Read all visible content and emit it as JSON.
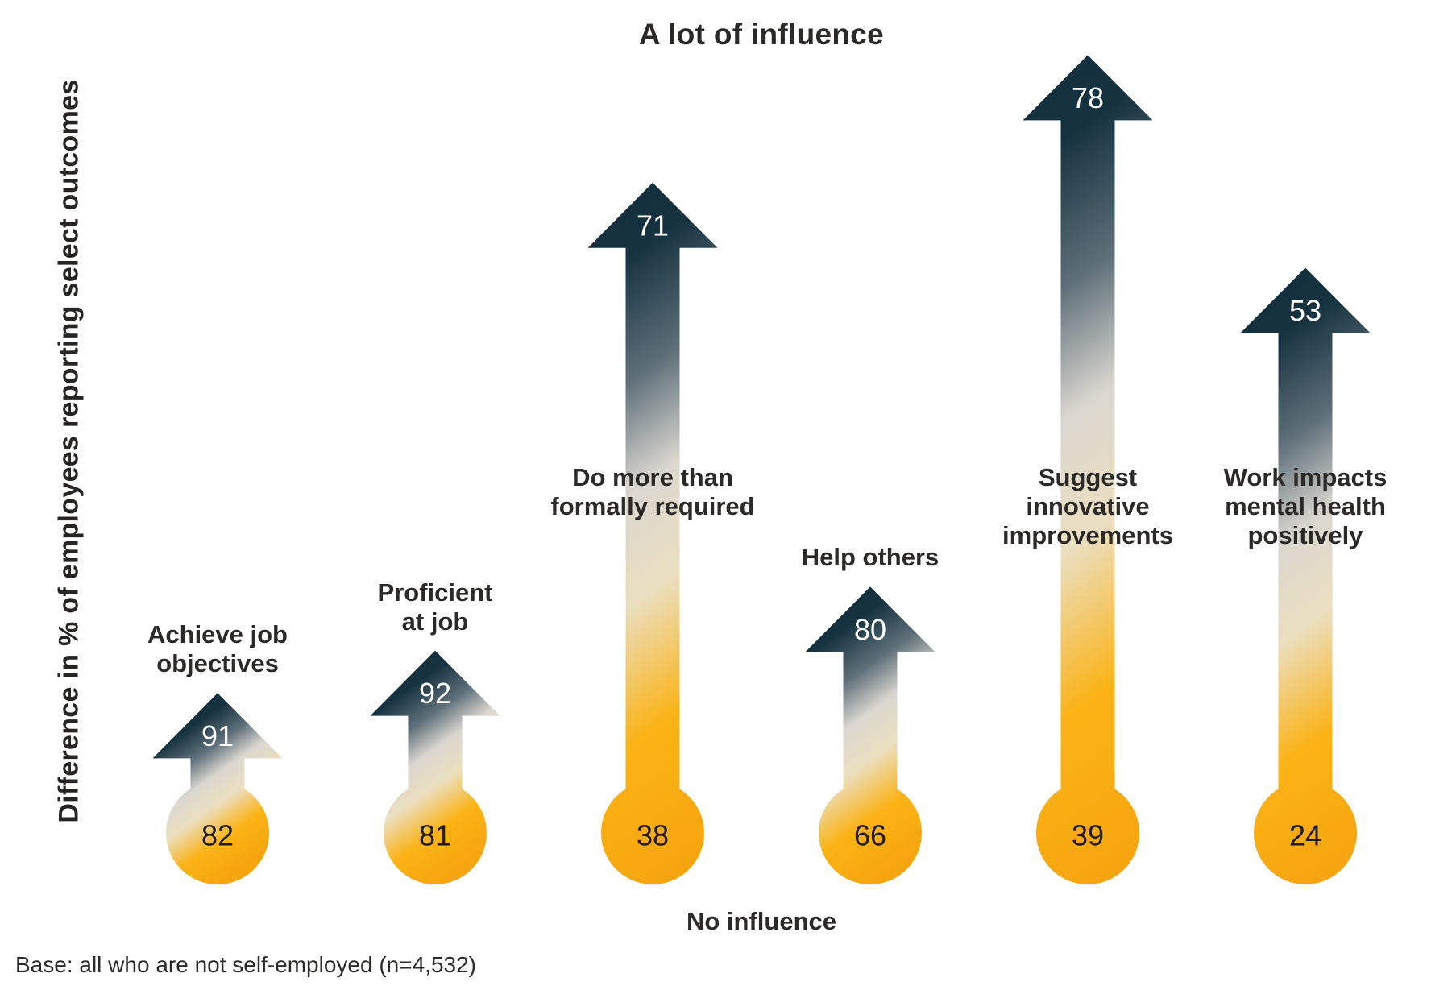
{
  "axis": {
    "top_label": "A lot of influence",
    "bottom_label": "No influence",
    "left_label": "Difference in % of employees reporting select outcomes"
  },
  "footnote": "Base: all who are not self-employed (n=4,532)",
  "columns": [
    {
      "label_lines": [
        "Achieve job",
        "objectives"
      ],
      "a_lot_of_influence": 91,
      "no_influence": 82
    },
    {
      "label_lines": [
        "Proficient",
        "at job"
      ],
      "a_lot_of_influence": 92,
      "no_influence": 81
    },
    {
      "label_lines": [
        "Do more than",
        "formally required"
      ],
      "a_lot_of_influence": 71,
      "no_influence": 38
    },
    {
      "label_lines": [
        "Help others"
      ],
      "a_lot_of_influence": 80,
      "no_influence": 66
    },
    {
      "label_lines": [
        "Suggest",
        "innovative",
        "improvements"
      ],
      "a_lot_of_influence": 78,
      "no_influence": 39
    },
    {
      "label_lines": [
        "Work impacts",
        "mental health",
        "positively"
      ],
      "a_lot_of_influence": 53,
      "no_influence": 24
    }
  ],
  "colors": {
    "navy": "#14303e",
    "navy2": "#16323f",
    "slate": "#5e6f79",
    "light_gray": "#dbd7d0",
    "cream": "#ebdfc0",
    "amber": "#fbb316",
    "amber_deep": "#f6a50e",
    "label_text": "#2b2a28",
    "value_dark": "#1c1c1a",
    "value_light": "#ffffff"
  },
  "chart_data": {
    "type": "bar",
    "variant": "paired-value thermometer arrows (arrow length = difference between series)",
    "categories": [
      "Achieve job objectives",
      "Proficient at job",
      "Do more than formally required",
      "Help others",
      "Suggest innovative improvements",
      "Work impacts mental health positively"
    ],
    "series": [
      {
        "name": "A lot of influence",
        "values": [
          91,
          92,
          71,
          80,
          78,
          53
        ]
      },
      {
        "name": "No influence",
        "values": [
          82,
          81,
          38,
          66,
          39,
          24
        ]
      }
    ],
    "title": "",
    "xlabel": "",
    "ylabel": "Difference in % of employees reporting select outcomes",
    "annotations": [
      "A lot of influence (top, at arrow tips)",
      "No influence (bottom, at bulbs)",
      "Base: all who are not self-employed (n=4,532)"
    ],
    "grid": false,
    "legend": false
  }
}
